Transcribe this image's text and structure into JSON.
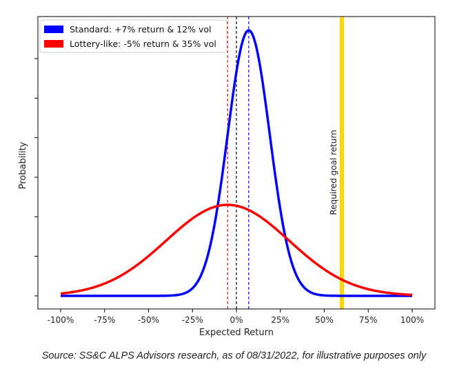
{
  "chart_data": {
    "type": "line",
    "xlabel": "Expected Return",
    "ylabel": "Probability",
    "xlim": [
      -1.0,
      1.0
    ],
    "x_ticks": [
      -1.0,
      -0.75,
      -0.5,
      -0.25,
      0.0,
      0.25,
      0.5,
      0.75,
      1.0
    ],
    "x_tick_labels": [
      "-100%",
      "-75%",
      "-50%",
      "-25%",
      "0%",
      "25%",
      "50%",
      "75%",
      "100%"
    ],
    "y_tick_count": 7,
    "y_tick_labels_shown": false,
    "grid": false,
    "legend_position": "top-left",
    "series": [
      {
        "name": "Standard: +7% return & 12% vol",
        "mean": 0.07,
        "std": 0.12,
        "color": "#0000ff"
      },
      {
        "name": "Lottery-like: -5% return & 35% vol",
        "mean": -0.05,
        "std": 0.35,
        "color": "#ff0000"
      }
    ],
    "reference_lines": [
      {
        "x": 0.0,
        "color": "#000000",
        "style": "dashed"
      },
      {
        "x": -0.05,
        "color": "#ff0000",
        "style": "dashed"
      },
      {
        "x": 0.07,
        "color": "#0000ff",
        "style": "dashed"
      },
      {
        "x": 0.6,
        "color": "#ffd700",
        "style": "solid",
        "label": "Required goal return"
      }
    ]
  },
  "footer": {
    "source": "Source: SS&C ALPS Advisors research, as of 08/31/2022, for illustrative purposes only"
  }
}
